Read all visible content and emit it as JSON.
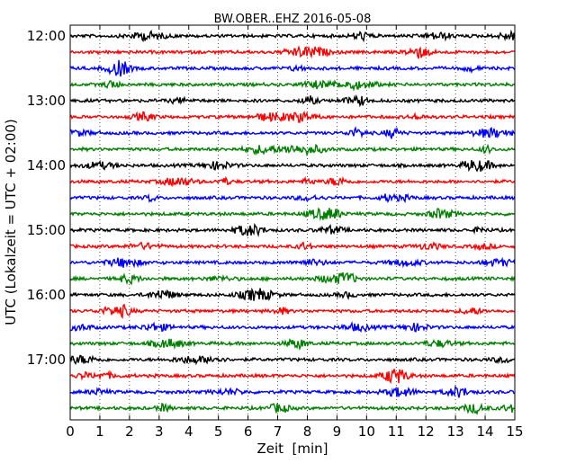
{
  "chart_data": {
    "type": "line",
    "title": "BW.OBER..EHZ 2016-05-08",
    "xlabel": "Zeit  [min]",
    "ylabel": "UTC (Lokalzeit = UTC + 02:00)",
    "xlim": [
      0,
      15
    ],
    "x_ticks": [
      0,
      1,
      2,
      3,
      4,
      5,
      6,
      7,
      8,
      9,
      10,
      11,
      12,
      13,
      14,
      15
    ],
    "y_tick_labels": [
      "12:00",
      "13:00",
      "14:00",
      "15:00",
      "16:00",
      "17:00"
    ],
    "trace_interval_minutes": 15,
    "grid": "vertical dotted",
    "series_colors": [
      "#000000",
      "#ff0000",
      "#0000ff",
      "#008000"
    ],
    "traces": [
      {
        "start": "12:00",
        "color": "#000000"
      },
      {
        "start": "12:15",
        "color": "#ff0000"
      },
      {
        "start": "12:30",
        "color": "#0000ff"
      },
      {
        "start": "12:45",
        "color": "#008000"
      },
      {
        "start": "13:00",
        "color": "#000000"
      },
      {
        "start": "13:15",
        "color": "#ff0000"
      },
      {
        "start": "13:30",
        "color": "#0000ff"
      },
      {
        "start": "13:45",
        "color": "#008000"
      },
      {
        "start": "14:00",
        "color": "#000000"
      },
      {
        "start": "14:15",
        "color": "#ff0000"
      },
      {
        "start": "14:30",
        "color": "#0000ff"
      },
      {
        "start": "14:45",
        "color": "#008000"
      },
      {
        "start": "15:00",
        "color": "#000000"
      },
      {
        "start": "15:15",
        "color": "#ff0000"
      },
      {
        "start": "15:30",
        "color": "#0000ff"
      },
      {
        "start": "15:45",
        "color": "#008000"
      },
      {
        "start": "16:00",
        "color": "#000000"
      },
      {
        "start": "16:15",
        "color": "#ff0000"
      },
      {
        "start": "16:30",
        "color": "#0000ff"
      },
      {
        "start": "16:45",
        "color": "#008000"
      },
      {
        "start": "17:00",
        "color": "#000000"
      },
      {
        "start": "17:15",
        "color": "#ff0000"
      },
      {
        "start": "17:30",
        "color": "#0000ff"
      },
      {
        "start": "17:45",
        "color": "#008000"
      }
    ]
  }
}
